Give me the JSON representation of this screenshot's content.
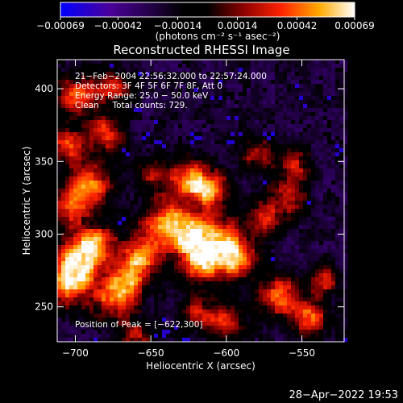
{
  "chart_data": {
    "type": "heatmap",
    "title": "Reconstructed RHESSI Image",
    "xlabel": "Heliocentric X (arcsec)",
    "ylabel": "Heliocentric Y (arcsec)",
    "xlim": [
      -712,
      -522
    ],
    "ylim": [
      226,
      420
    ],
    "xticks": [
      {
        "value": -700,
        "label": "−700"
      },
      {
        "value": -650,
        "label": "−650"
      },
      {
        "value": -600,
        "label": "−600"
      },
      {
        "value": -550,
        "label": "−550"
      }
    ],
    "yticks": [
      {
        "value": 250,
        "label": "250"
      },
      {
        "value": 300,
        "label": "300"
      },
      {
        "value": 350,
        "label": "350"
      },
      {
        "value": 400,
        "label": "400"
      }
    ],
    "colorbar": {
      "min": -0.00069,
      "max": 0.00069,
      "ticks": [
        {
          "value": -0.00069,
          "label": "−0.00069"
        },
        {
          "value": -0.00042,
          "label": "−0.00042"
        },
        {
          "value": -0.00014,
          "label": "−0.00014"
        },
        {
          "value": 0.00014,
          "label": "0.00014"
        },
        {
          "value": 0.00042,
          "label": "0.00042"
        },
        {
          "value": 0.00069,
          "label": "0.00069"
        }
      ],
      "unit_label": "(photons cm⁻² s⁻¹ asec⁻²)",
      "colors": [
        "#0000ff",
        "#4b0099",
        "#000000",
        "#8a0000",
        "#ff2200",
        "#ffaa00",
        "#ffffff"
      ]
    },
    "annotations": [
      "21−Feb−2004 22:56:32.000 to 22:57:24.000",
      "Detectors: 3F 4F 5F 6F 7F 8F, Att 0",
      "Energy Range: 25.0 − 50.0 keV",
      "Clean     Total counts: 729."
    ],
    "peak_label": "Position of Peak = [−622,300]",
    "peak": {
      "x": -622,
      "y": 300
    },
    "sources": [
      {
        "x": -622,
        "y": 300,
        "amp": 1.0,
        "sigma": 9
      },
      {
        "x": -640,
        "y": 308,
        "amp": 0.85,
        "sigma": 11
      },
      {
        "x": -605,
        "y": 295,
        "amp": 0.8,
        "sigma": 12
      },
      {
        "x": -594,
        "y": 282,
        "amp": 0.75,
        "sigma": 10
      },
      {
        "x": -655,
        "y": 285,
        "amp": 0.7,
        "sigma": 10
      },
      {
        "x": -620,
        "y": 278,
        "amp": 0.7,
        "sigma": 10
      },
      {
        "x": -700,
        "y": 278,
        "amp": 0.95,
        "sigma": 10
      },
      {
        "x": -688,
        "y": 292,
        "amp": 0.85,
        "sigma": 11
      },
      {
        "x": -705,
        "y": 262,
        "amp": 0.7,
        "sigma": 9
      },
      {
        "x": -675,
        "y": 255,
        "amp": 0.75,
        "sigma": 10
      },
      {
        "x": -665,
        "y": 270,
        "amp": 0.7,
        "sigma": 9
      },
      {
        "x": -704,
        "y": 320,
        "amp": 0.7,
        "sigma": 10
      },
      {
        "x": -690,
        "y": 335,
        "amp": 0.75,
        "sigma": 10
      },
      {
        "x": -706,
        "y": 360,
        "amp": 0.65,
        "sigma": 9
      },
      {
        "x": -680,
        "y": 370,
        "amp": 0.7,
        "sigma": 9
      },
      {
        "x": -700,
        "y": 395,
        "amp": 0.75,
        "sigma": 10
      },
      {
        "x": -675,
        "y": 400,
        "amp": 0.6,
        "sigma": 8
      },
      {
        "x": -625,
        "y": 338,
        "amp": 0.8,
        "sigma": 10
      },
      {
        "x": -610,
        "y": 330,
        "amp": 0.75,
        "sigma": 9
      },
      {
        "x": -580,
        "y": 355,
        "amp": 0.55,
        "sigma": 8
      },
      {
        "x": -555,
        "y": 348,
        "amp": 0.55,
        "sigma": 8
      },
      {
        "x": -560,
        "y": 325,
        "amp": 0.6,
        "sigma": 9
      },
      {
        "x": -575,
        "y": 310,
        "amp": 0.55,
        "sigma": 8
      },
      {
        "x": -620,
        "y": 245,
        "amp": 0.55,
        "sigma": 8
      },
      {
        "x": -600,
        "y": 240,
        "amp": 0.6,
        "sigma": 9
      },
      {
        "x": -565,
        "y": 258,
        "amp": 0.75,
        "sigma": 10
      },
      {
        "x": -545,
        "y": 242,
        "amp": 0.7,
        "sigma": 9
      },
      {
        "x": -535,
        "y": 268,
        "amp": 0.55,
        "sigma": 7
      },
      {
        "x": -650,
        "y": 340,
        "amp": 0.5,
        "sigma": 8
      },
      {
        "x": -660,
        "y": 230,
        "amp": 0.55,
        "sigma": 8
      }
    ]
  },
  "footer": {
    "timestamp": "28−Apr−2022 19:53"
  }
}
